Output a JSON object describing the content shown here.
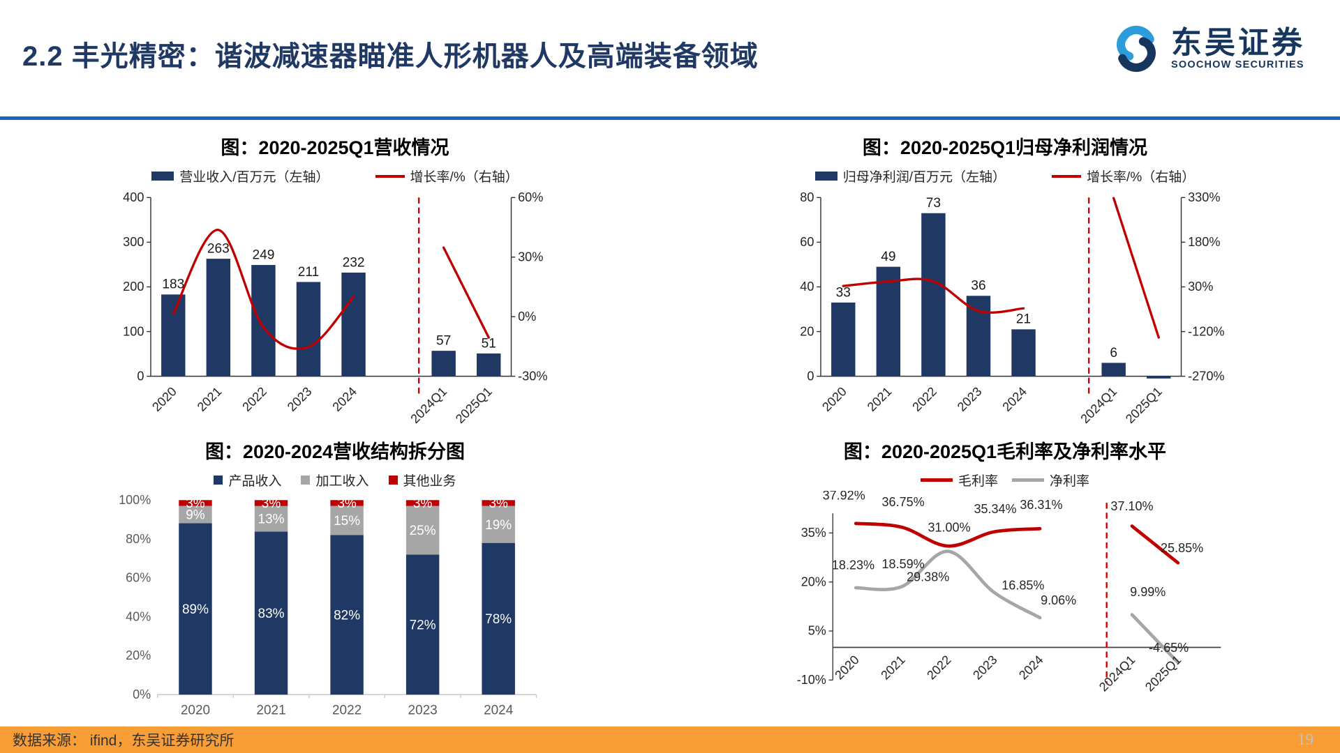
{
  "header": {
    "title": "2.2 丰光精密：谐波减速器瞄准人形机器人及高端装备领域",
    "logo_cn": "东吴证券",
    "logo_en": "SOOCHOW SECURITIES"
  },
  "footer": {
    "source": "数据来源： ifind，东吴证券研究所",
    "page": "19"
  },
  "colors": {
    "navy": "#1F3864",
    "red": "#C00000",
    "gray": "#A6A6A6",
    "divider_blue": "#1565C0",
    "footer_orange": "#F99D36",
    "logo_light_blue": "#2D9CDB",
    "logo_dark_blue": "#17365D"
  },
  "chart_data": [
    {
      "type": "bar+line",
      "title": "图：2020-2025Q1营收情况",
      "categories": [
        "2020",
        "2021",
        "2022",
        "2023",
        "2024",
        "2024Q1",
        "2025Q1"
      ],
      "bar_series": {
        "name": "营业收入/百万元（左轴）",
        "color": "#1F3864",
        "values": [
          183,
          263,
          249,
          211,
          232,
          57,
          51
        ]
      },
      "bar_labels": [
        "183",
        "263",
        "249",
        "211",
        "232",
        "57",
        "51"
      ],
      "line_series": {
        "name": "增长率/%（右轴）",
        "color": "#C00000",
        "values": [
          1.5,
          43.7,
          -5.3,
          -15.3,
          10.0,
          34.8,
          -10.5
        ]
      },
      "left_axis": {
        "min": 0,
        "max": 400,
        "ticks": [
          0,
          100,
          200,
          300,
          400
        ]
      },
      "right_axis": {
        "min": -30,
        "max": 60,
        "ticks": [
          60,
          30,
          0,
          -30
        ]
      },
      "separator_after_index": 4
    },
    {
      "type": "bar+line",
      "title": "图：2020-2025Q1归母净利润情况",
      "categories": [
        "2020",
        "2021",
        "2022",
        "2023",
        "2024",
        "2024Q1",
        "2025Q1"
      ],
      "bar_series": {
        "name": "归母净利润/百万元（左轴）",
        "color": "#1F3864",
        "values": [
          33,
          49,
          73,
          36,
          21,
          6,
          -1
        ]
      },
      "bar_labels": [
        "33",
        "49",
        "73",
        "36",
        "21",
        "6",
        ""
      ],
      "line_series": {
        "name": "增长率/%（右轴）",
        "color": "#C00000",
        "values": [
          33,
          48,
          49,
          -51,
          -42,
          328,
          -140
        ]
      },
      "left_axis": {
        "min": 0,
        "max": 80,
        "ticks": [
          0,
          20,
          40,
          60,
          80
        ]
      },
      "right_axis": {
        "min": -270,
        "max": 330,
        "ticks": [
          330,
          180,
          30,
          -120,
          -270
        ]
      },
      "separator_after_index": 4
    },
    {
      "type": "stacked-bar",
      "title": "图：2020-2024营收结构拆分图",
      "categories": [
        "2020",
        "2021",
        "2022",
        "2023",
        "2024"
      ],
      "series": [
        {
          "name": "产品收入",
          "color": "#1F3864",
          "values": [
            89,
            83,
            82,
            72,
            78
          ]
        },
        {
          "name": "加工收入",
          "color": "#A6A6A6",
          "values": [
            9,
            13,
            15,
            25,
            19
          ]
        },
        {
          "name": "其他业务",
          "color": "#C00000",
          "values": [
            3,
            3,
            3,
            3,
            3
          ]
        }
      ],
      "y_axis": {
        "min": 0,
        "max": 100,
        "ticks": [
          0,
          20,
          40,
          60,
          80,
          100
        ]
      }
    },
    {
      "type": "line",
      "title": "图：2020-2025Q1毛利率及净利率水平",
      "categories": [
        "2020",
        "2021",
        "2022",
        "2023",
        "2024",
        "2024Q1",
        "2025Q1"
      ],
      "series": [
        {
          "name": "毛利率",
          "color": "#C00000",
          "values": [
            37.92,
            36.75,
            31.0,
            35.34,
            36.31,
            37.1,
            25.85
          ]
        },
        {
          "name": "净利率",
          "color": "#A6A6A6",
          "values": [
            18.23,
            18.59,
            29.38,
            16.85,
            9.06,
            9.99,
            -4.65
          ]
        }
      ],
      "y_axis": {
        "min": -10,
        "max": 41,
        "ticks": [
          -10,
          5,
          20,
          35
        ]
      },
      "separator_after_index": 4
    }
  ]
}
